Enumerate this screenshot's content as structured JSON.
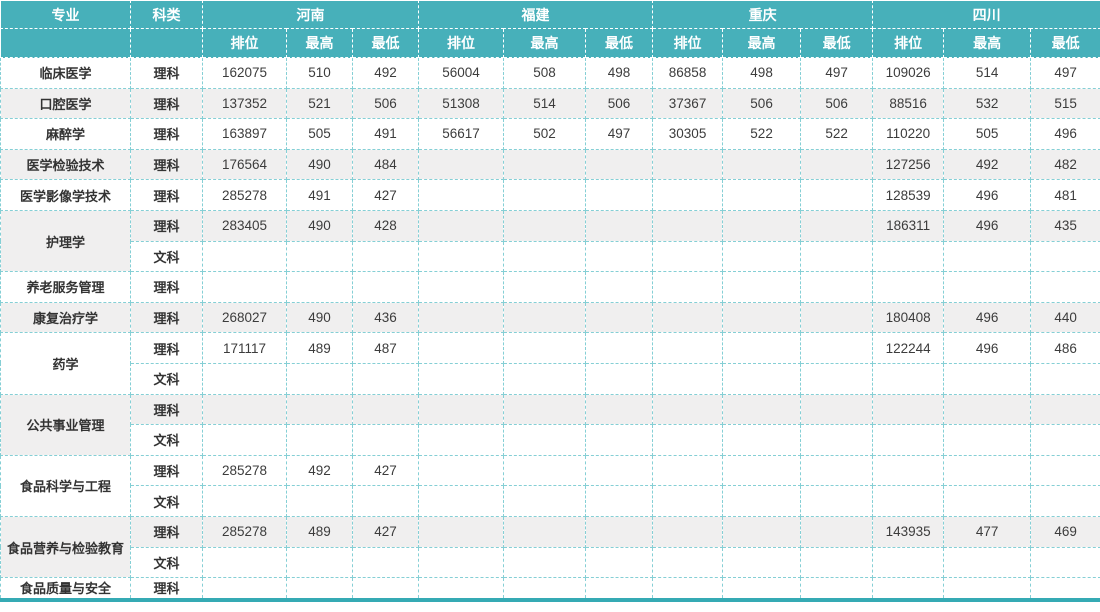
{
  "header": {
    "major": "专业",
    "category": "科类",
    "provinces": [
      "河南",
      "福建",
      "重庆",
      "四川"
    ],
    "subcols": [
      "排位",
      "最高",
      "最低"
    ]
  },
  "rows": [
    {
      "major": "临床医学",
      "span": 1,
      "category": "理科",
      "shade": "white",
      "v": [
        "162075",
        "510",
        "492",
        "56004",
        "508",
        "498",
        "86858",
        "498",
        "497",
        "109026",
        "514",
        "497"
      ]
    },
    {
      "major": "口腔医学",
      "span": 1,
      "category": "理科",
      "shade": "gray",
      "v": [
        "137352",
        "521",
        "506",
        "51308",
        "514",
        "506",
        "37367",
        "506",
        "506",
        "88516",
        "532",
        "515"
      ]
    },
    {
      "major": "麻醉学",
      "span": 1,
      "category": "理科",
      "shade": "white",
      "v": [
        "163897",
        "505",
        "491",
        "56617",
        "502",
        "497",
        "30305",
        "522",
        "522",
        "110220",
        "505",
        "496"
      ]
    },
    {
      "major": "医学检验技术",
      "span": 1,
      "category": "理科",
      "shade": "gray",
      "v": [
        "176564",
        "490",
        "484",
        "",
        "",
        "",
        "",
        "",
        "",
        "127256",
        "492",
        "482"
      ]
    },
    {
      "major": "医学影像学技术",
      "span": 1,
      "category": "理科",
      "shade": "white",
      "v": [
        "285278",
        "491",
        "427",
        "",
        "",
        "",
        "",
        "",
        "",
        "128539",
        "496",
        "481"
      ]
    },
    {
      "major": "护理学",
      "span": 2,
      "category": "理科",
      "shade": "gray",
      "v": [
        "283405",
        "490",
        "428",
        "",
        "",
        "",
        "",
        "",
        "",
        "186311",
        "496",
        "435"
      ]
    },
    {
      "category": "文科",
      "shade": "white",
      "v": [
        "",
        "",
        "",
        "",
        "",
        "",
        "",
        "",
        "",
        "",
        "",
        ""
      ]
    },
    {
      "major": "养老服务管理",
      "span": 1,
      "category": "理科",
      "shade": "white",
      "v": [
        "",
        "",
        "",
        "",
        "",
        "",
        "",
        "",
        "",
        "",
        "",
        ""
      ]
    },
    {
      "major": "康复治疗学",
      "span": 1,
      "category": "理科",
      "shade": "gray",
      "v": [
        "268027",
        "490",
        "436",
        "",
        "",
        "",
        "",
        "",
        "",
        "180408",
        "496",
        "440"
      ]
    },
    {
      "major": "药学",
      "span": 2,
      "category": "理科",
      "shade": "white",
      "v": [
        "171117",
        "489",
        "487",
        "",
        "",
        "",
        "",
        "",
        "",
        "122244",
        "496",
        "486"
      ]
    },
    {
      "category": "文科",
      "shade": "white",
      "v": [
        "",
        "",
        "",
        "",
        "",
        "",
        "",
        "",
        "",
        "",
        "",
        ""
      ]
    },
    {
      "major": "公共事业管理",
      "span": 2,
      "category": "理科",
      "shade": "gray",
      "v": [
        "",
        "",
        "",
        "",
        "",
        "",
        "",
        "",
        "",
        "",
        "",
        ""
      ]
    },
    {
      "category": "文科",
      "shade": "white",
      "v": [
        "",
        "",
        "",
        "",
        "",
        "",
        "",
        "",
        "",
        "",
        "",
        ""
      ]
    },
    {
      "major": "食品科学与工程",
      "span": 2,
      "category": "理科",
      "shade": "white",
      "v": [
        "285278",
        "492",
        "427",
        "",
        "",
        "",
        "",
        "",
        "",
        "",
        "",
        ""
      ]
    },
    {
      "category": "文科",
      "shade": "white",
      "v": [
        "",
        "",
        "",
        "",
        "",
        "",
        "",
        "",
        "",
        "",
        "",
        ""
      ]
    },
    {
      "major": "食品营养与检验教育",
      "span": 2,
      "category": "理科",
      "shade": "gray",
      "v": [
        "285278",
        "489",
        "427",
        "",
        "",
        "",
        "",
        "",
        "",
        "143935",
        "477",
        "469"
      ]
    },
    {
      "category": "文科",
      "shade": "white",
      "v": [
        "",
        "",
        "",
        "",
        "",
        "",
        "",
        "",
        "",
        "",
        "",
        ""
      ]
    },
    {
      "major": "食品质量与安全",
      "span": 1,
      "category": "理科",
      "shade": "white",
      "v": [
        "",
        "",
        "",
        "",
        "",
        "",
        "",
        "",
        "",
        "",
        "",
        ""
      ]
    }
  ],
  "colors": {
    "header_bg": "#47b0ba",
    "header_text": "#ffffff",
    "grid_dash": "#85cfd5",
    "row_gray": "#f0efef",
    "row_white": "#ffffff",
    "cell_text": "#3c3c3c",
    "bottom_rule": "#35aab4"
  }
}
